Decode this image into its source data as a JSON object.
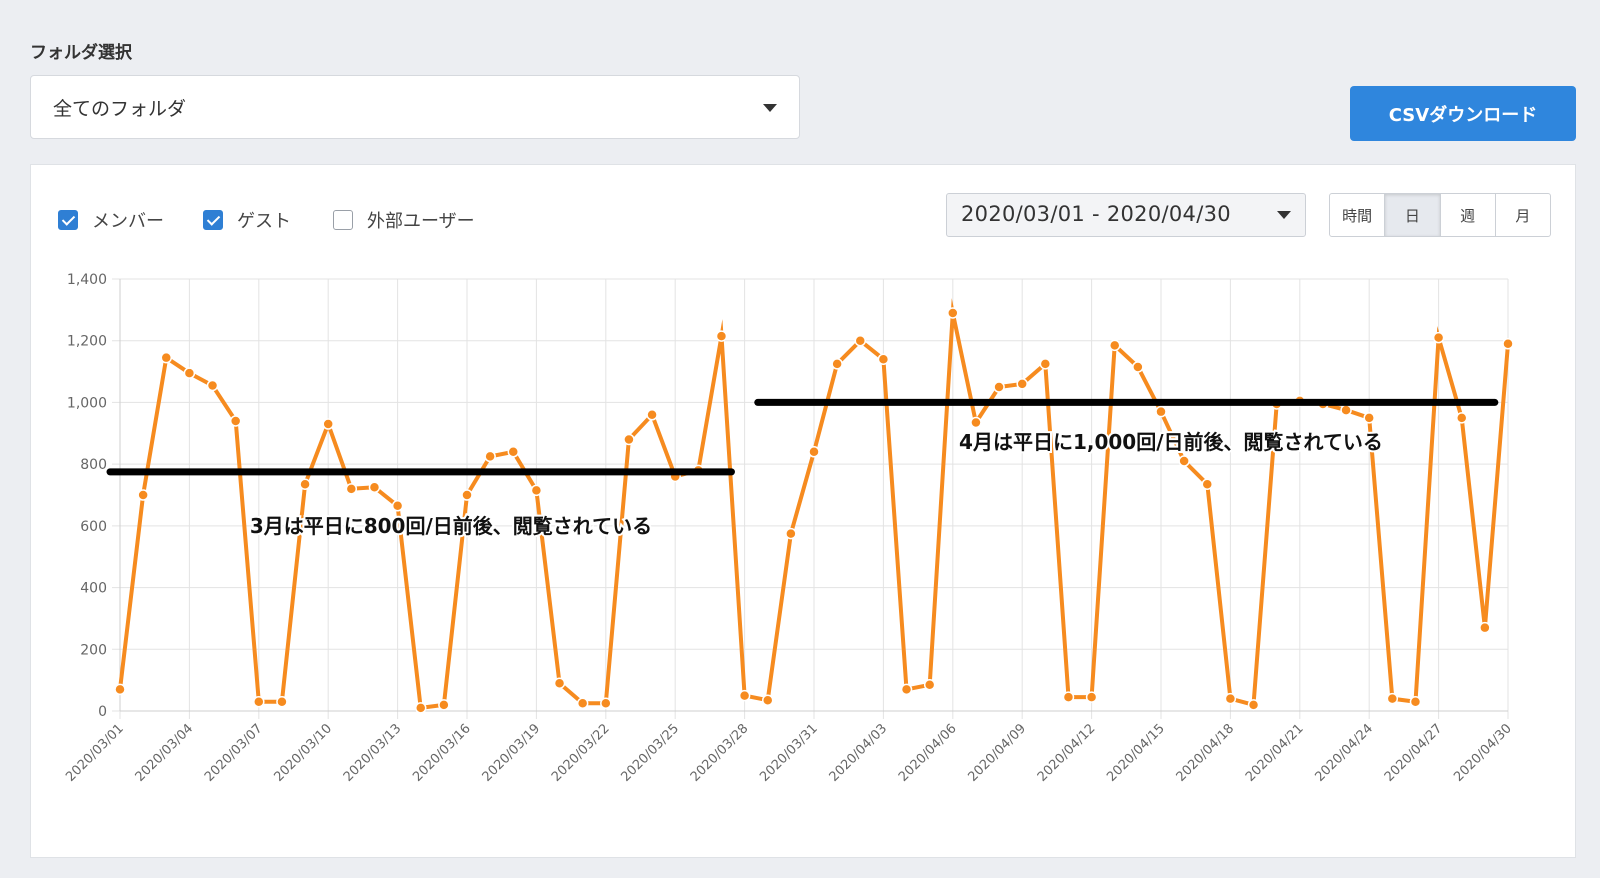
{
  "folder": {
    "label": "フォルダ選択",
    "selected": "全てのフォルダ"
  },
  "toolbar": {
    "csv_label": "CSVダウンロード"
  },
  "filters": {
    "items": [
      {
        "label": "メンバー",
        "checked": true
      },
      {
        "label": "ゲスト",
        "checked": true
      },
      {
        "label": "外部ユーザー",
        "checked": false
      }
    ]
  },
  "date_range": {
    "value": "2020/03/01 - 2020/04/30"
  },
  "granularity": {
    "options": [
      "時間",
      "日",
      "週",
      "月"
    ],
    "active": "日"
  },
  "colors": {
    "series": "#f68b1f",
    "accent": "#2f86dd",
    "annotation_line": "#000000"
  },
  "chart_data": {
    "type": "line",
    "ylim": [
      0,
      1400
    ],
    "yticks": [
      "0",
      "200",
      "400",
      "600",
      "800",
      "1,000",
      "1,200",
      "1,400"
    ],
    "ytick_values": [
      0,
      200,
      400,
      600,
      800,
      1000,
      1200,
      1400
    ],
    "grid": true,
    "xtick_labels": [
      "2020/03/01",
      "2020/03/04",
      "2020/03/07",
      "2020/03/10",
      "2020/03/13",
      "2020/03/16",
      "2020/03/19",
      "2020/03/22",
      "2020/03/25",
      "2020/03/28",
      "2020/03/31",
      "2020/04/03",
      "2020/04/06",
      "2020/04/09",
      "2020/04/12",
      "2020/04/15",
      "2020/04/18",
      "2020/04/21",
      "2020/04/24",
      "2020/04/27",
      "2020/04/30"
    ],
    "series": [
      {
        "values": [
          70,
          700,
          1145,
          1095,
          1055,
          940,
          30,
          30,
          735,
          930,
          720,
          725,
          665,
          10,
          20,
          700,
          825,
          840,
          715,
          90,
          25,
          25,
          880,
          960,
          760,
          780,
          1215,
          50,
          35,
          575,
          840,
          1125,
          1200,
          1140,
          70,
          85,
          1290,
          935,
          1050,
          1060,
          1125,
          45,
          45,
          1185,
          1115,
          970,
          810,
          735,
          40,
          20,
          995,
          1005,
          995,
          975,
          950,
          40,
          30,
          1210,
          950,
          270,
          1190
        ]
      }
    ],
    "annotations": [
      {
        "text": "3月は平日に800回/日前後、閲覧されている",
        "value": 775,
        "from": "2020/03/01",
        "to": "2020/03/27"
      },
      {
        "text": "4月は平日に1,000回/日前後、閲覧されている",
        "value": 1000,
        "from": "2020/03/29",
        "to": "2020/04/29"
      }
    ]
  }
}
